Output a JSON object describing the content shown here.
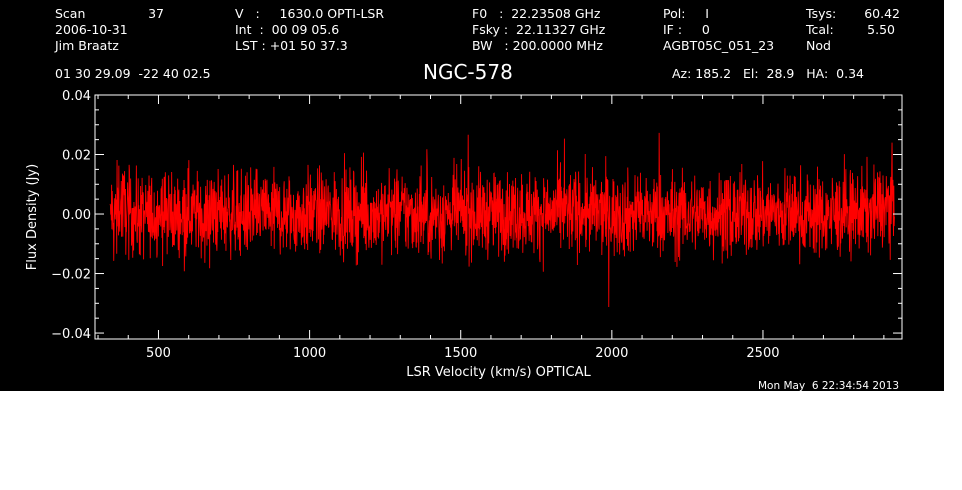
{
  "header": {
    "scan_label": "Scan",
    "scan_number": "37",
    "date": "2006-10-31",
    "observer": "Jim Braatz",
    "velocity": "V   :     1630.0 OPTI-LSR",
    "integration": "Int  :  00 09 05.6",
    "lst": "LST : +01 50 37.3",
    "f0": "F0   :  22.23508 GHz",
    "fsky": "Fsky :  22.11327 GHz",
    "bw": "BW   : 200.0000 MHz",
    "pol": "Pol:     I",
    "if": "IF :     0",
    "project": "AGBT05C_051_23",
    "tsys_label": "Tsys:",
    "tsys_value": "60.42",
    "tcal_label": "Tcal:",
    "tcal_value": "5.50",
    "procedure": "Nod",
    "coordinates": "01 30 29.09  -22 40 02.5",
    "target": "NGC-578",
    "az_el_ha": "Az: 185.2   El:  28.9   HA:  0.34"
  },
  "timestamp": "Mon May  6 22:34:54 2013",
  "colors": {
    "background": "#000000",
    "foreground": "#ffffff",
    "spectrum": "#ff0000"
  },
  "chart_data": {
    "type": "line",
    "title": "NGC-578",
    "xlabel": "LSR Velocity (km/s) OPTICAL",
    "ylabel": "Flux Density (Jy)",
    "xlim": [
      290,
      2960
    ],
    "ylim": [
      -0.042,
      0.04
    ],
    "xticks": [
      {
        "value": 500,
        "label": "500"
      },
      {
        "value": 1000,
        "label": "1000"
      },
      {
        "value": 1500,
        "label": "1500"
      },
      {
        "value": 2000,
        "label": "2000"
      },
      {
        "value": 2500,
        "label": "2500"
      }
    ],
    "yticks": [
      {
        "value": 0.04,
        "label": "0.04"
      },
      {
        "value": 0.02,
        "label": "0.02"
      },
      {
        "value": 0.0,
        "label": "0.00"
      },
      {
        "value": -0.02,
        "label": "−0.02"
      },
      {
        "value": -0.04,
        "label": "−0.04"
      }
    ],
    "grid": false,
    "series": [
      {
        "color": "#ff0000",
        "x_start": 340,
        "x_end": 2935,
        "approx_rms": 0.007,
        "approx_max": 0.031,
        "approx_min": -0.033,
        "points": [
          [
            340,
            -0.012
          ],
          [
            345,
            0.01
          ],
          [
            350,
            -0.02
          ],
          [
            360,
            0.005
          ],
          [
            370,
            0.015
          ],
          [
            400,
            0.002
          ],
          [
            450,
            -0.004
          ],
          [
            500,
            0.003
          ],
          [
            550,
            -0.002
          ],
          [
            600,
            0.004
          ],
          [
            650,
            -0.003
          ],
          [
            700,
            0.002
          ],
          [
            750,
            0.001
          ],
          [
            800,
            -0.002
          ],
          [
            850,
            0.003
          ],
          [
            900,
            0.0
          ],
          [
            950,
            -0.002
          ],
          [
            1000,
            0.002
          ],
          [
            1100,
            0.001
          ],
          [
            1200,
            -0.001
          ],
          [
            1300,
            0.002
          ],
          [
            1400,
            -0.002
          ],
          [
            1500,
            0.001
          ],
          [
            1600,
            0.0
          ],
          [
            1700,
            0.002
          ],
          [
            1800,
            0.001
          ],
          [
            1900,
            0.003
          ],
          [
            2000,
            -0.001
          ],
          [
            2100,
            0.0
          ],
          [
            2200,
            -0.002
          ],
          [
            2300,
            0.001
          ],
          [
            2400,
            -0.001
          ],
          [
            2500,
            0.002
          ],
          [
            2600,
            0.001
          ],
          [
            2700,
            -0.002
          ],
          [
            2800,
            0.001
          ],
          [
            2860,
            0.004
          ],
          [
            2900,
            0.008
          ],
          [
            2920,
            0.012
          ],
          [
            2935,
            0.016
          ]
        ]
      }
    ]
  }
}
